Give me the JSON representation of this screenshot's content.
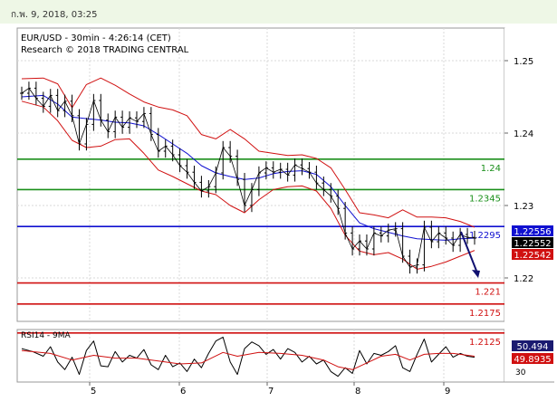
{
  "header": {
    "date_text": "ก.พ. 9, 2018, 03:25"
  },
  "chart_data": {
    "type": "line",
    "title": "EUR/USD - 30min - 4:26:14 (CET)",
    "subtitle": "Research © 2018 TRADING CENTRAL",
    "x_tick_labels": [
      "5",
      "6",
      "7",
      "8",
      "9"
    ],
    "y_tick_labels": [
      "1.25",
      "1.24",
      "1.23",
      "1.22"
    ],
    "ylim": [
      1.214,
      1.2545
    ],
    "grid": true,
    "levels": [
      {
        "label": "1.24",
        "value": 1.2364,
        "color": "#1a8f1a"
      },
      {
        "label": "1.2345",
        "value": 1.2322,
        "color": "#1a8f1a"
      },
      {
        "label": "1.2295",
        "value": 1.2271,
        "color": "#1010d0"
      },
      {
        "label": "1.221",
        "value": 1.2193,
        "color": "#d01010"
      },
      {
        "label": "1.2175",
        "value": 1.2164,
        "color": "#d01010"
      },
      {
        "label": "1.2125",
        "value": 1.2124,
        "color": "#d01010"
      }
    ],
    "price_badges": [
      {
        "label": "1.22556",
        "value": 1.22556,
        "color": "#1010d0"
      },
      {
        "label": "1.22552",
        "value": 1.22552,
        "color": "#000000"
      },
      {
        "label": "1.22542",
        "value": 1.22542,
        "color": "#d01010"
      }
    ],
    "price_series": [
      [
        0,
        1.2455
      ],
      [
        2,
        1.2462
      ],
      [
        4,
        1.2448
      ],
      [
        6,
        1.2437
      ],
      [
        8,
        1.2452
      ],
      [
        10,
        1.2431
      ],
      [
        12,
        1.2444
      ],
      [
        14,
        1.2424
      ],
      [
        16,
        1.2385
      ],
      [
        18,
        1.2412
      ],
      [
        20,
        1.2445
      ],
      [
        22,
        1.2418
      ],
      [
        24,
        1.2402
      ],
      [
        26,
        1.2422
      ],
      [
        28,
        1.2408
      ],
      [
        30,
        1.2421
      ],
      [
        32,
        1.2416
      ],
      [
        34,
        1.2427
      ],
      [
        36,
        1.2398
      ],
      [
        38,
        1.2375
      ],
      [
        40,
        1.2382
      ],
      [
        42,
        1.237
      ],
      [
        44,
        1.2355
      ],
      [
        46,
        1.2346
      ],
      [
        48,
        1.2332
      ],
      [
        50,
        1.232
      ],
      [
        52,
        1.2326
      ],
      [
        54,
        1.2345
      ],
      [
        56,
        1.238
      ],
      [
        58,
        1.2368
      ],
      [
        60,
        1.2336
      ],
      [
        62,
        1.23
      ],
      [
        64,
        1.2322
      ],
      [
        66,
        1.2345
      ],
      [
        68,
        1.2352
      ],
      [
        70,
        1.2346
      ],
      [
        72,
        1.235
      ],
      [
        74,
        1.2342
      ],
      [
        76,
        1.2356
      ],
      [
        78,
        1.2351
      ],
      [
        80,
        1.2346
      ],
      [
        82,
        1.2331
      ],
      [
        84,
        1.2322
      ],
      [
        86,
        1.2313
      ],
      [
        88,
        1.2296
      ],
      [
        90,
        1.2262
      ],
      [
        92,
        1.224
      ],
      [
        94,
        1.2251
      ],
      [
        96,
        1.224
      ],
      [
        98,
        1.2262
      ],
      [
        100,
        1.2258
      ],
      [
        102,
        1.2266
      ],
      [
        104,
        1.2268
      ],
      [
        106,
        1.223
      ],
      [
        108,
        1.2215
      ],
      [
        110,
        1.2218
      ],
      [
        112,
        1.227
      ],
      [
        114,
        1.225
      ],
      [
        116,
        1.2262
      ],
      [
        118,
        1.2255
      ],
      [
        120,
        1.2245
      ],
      [
        122,
        1.226
      ],
      [
        124,
        1.2256
      ],
      [
        126,
        1.2255
      ]
    ],
    "upper_band": [
      [
        0,
        1.2475
      ],
      [
        6,
        1.2476
      ],
      [
        10,
        1.2468
      ],
      [
        14,
        1.2435
      ],
      [
        18,
        1.2467
      ],
      [
        22,
        1.2476
      ],
      [
        26,
        1.2466
      ],
      [
        30,
        1.2454
      ],
      [
        34,
        1.2443
      ],
      [
        38,
        1.2436
      ],
      [
        42,
        1.2432
      ],
      [
        46,
        1.2424
      ],
      [
        50,
        1.2398
      ],
      [
        54,
        1.2392
      ],
      [
        58,
        1.2405
      ],
      [
        62,
        1.2392
      ],
      [
        66,
        1.2375
      ],
      [
        70,
        1.2372
      ],
      [
        74,
        1.2369
      ],
      [
        78,
        1.237
      ],
      [
        82,
        1.2365
      ],
      [
        86,
        1.2352
      ],
      [
        90,
        1.2322
      ],
      [
        94,
        1.229
      ],
      [
        98,
        1.2287
      ],
      [
        102,
        1.2283
      ],
      [
        106,
        1.2294
      ],
      [
        110,
        1.2284
      ],
      [
        114,
        1.2284
      ],
      [
        118,
        1.2283
      ],
      [
        122,
        1.2278
      ],
      [
        126,
        1.227
      ]
    ],
    "lower_band": [
      [
        0,
        1.2444
      ],
      [
        6,
        1.2436
      ],
      [
        10,
        1.2417
      ],
      [
        14,
        1.239
      ],
      [
        18,
        1.238
      ],
      [
        22,
        1.2382
      ],
      [
        26,
        1.2391
      ],
      [
        30,
        1.2392
      ],
      [
        34,
        1.2372
      ],
      [
        38,
        1.2349
      ],
      [
        42,
        1.234
      ],
      [
        46,
        1.233
      ],
      [
        50,
        1.232
      ],
      [
        54,
        1.2315
      ],
      [
        58,
        1.23
      ],
      [
        62,
        1.229
      ],
      [
        66,
        1.2308
      ],
      [
        70,
        1.2322
      ],
      [
        74,
        1.2326
      ],
      [
        78,
        1.2327
      ],
      [
        82,
        1.232
      ],
      [
        86,
        1.2296
      ],
      [
        90,
        1.2259
      ],
      [
        94,
        1.2237
      ],
      [
        98,
        1.2232
      ],
      [
        102,
        1.2235
      ],
      [
        106,
        1.2226
      ],
      [
        110,
        1.2212
      ],
      [
        114,
        1.2216
      ],
      [
        118,
        1.2222
      ],
      [
        122,
        1.223
      ],
      [
        126,
        1.2238
      ]
    ],
    "moving_average": [
      [
        0,
        1.245
      ],
      [
        6,
        1.2452
      ],
      [
        10,
        1.244
      ],
      [
        14,
        1.2422
      ],
      [
        18,
        1.242
      ],
      [
        22,
        1.2418
      ],
      [
        26,
        1.2415
      ],
      [
        30,
        1.2414
      ],
      [
        34,
        1.241
      ],
      [
        38,
        1.2398
      ],
      [
        42,
        1.2385
      ],
      [
        46,
        1.2372
      ],
      [
        50,
        1.2355
      ],
      [
        54,
        1.2345
      ],
      [
        58,
        1.234
      ],
      [
        62,
        1.2336
      ],
      [
        66,
        1.2338
      ],
      [
        70,
        1.2344
      ],
      [
        74,
        1.2347
      ],
      [
        78,
        1.2348
      ],
      [
        82,
        1.2343
      ],
      [
        86,
        1.2326
      ],
      [
        90,
        1.23
      ],
      [
        94,
        1.2276
      ],
      [
        98,
        1.2268
      ],
      [
        102,
        1.2263
      ],
      [
        106,
        1.2258
      ],
      [
        110,
        1.2254
      ],
      [
        114,
        1.2253
      ],
      [
        118,
        1.2252
      ],
      [
        122,
        1.2254
      ],
      [
        126,
        1.2255
      ]
    ],
    "rsi": {
      "label": "RSI14 - 9MA",
      "value_label": "50.494",
      "ma_label": "49.8935",
      "tick_label": "30",
      "ylim": [
        25,
        80
      ],
      "values": [
        [
          0,
          60
        ],
        [
          3,
          57
        ],
        [
          6,
          52
        ],
        [
          8,
          62
        ],
        [
          10,
          46
        ],
        [
          12,
          38
        ],
        [
          14,
          51
        ],
        [
          16,
          33
        ],
        [
          18,
          58
        ],
        [
          20,
          68
        ],
        [
          22,
          42
        ],
        [
          24,
          41
        ],
        [
          26,
          57
        ],
        [
          28,
          46
        ],
        [
          30,
          53
        ],
        [
          32,
          50
        ],
        [
          34,
          59
        ],
        [
          36,
          43
        ],
        [
          38,
          38
        ],
        [
          40,
          53
        ],
        [
          42,
          41
        ],
        [
          44,
          45
        ],
        [
          46,
          36
        ],
        [
          48,
          49
        ],
        [
          50,
          40
        ],
        [
          52,
          55
        ],
        [
          54,
          68
        ],
        [
          56,
          72
        ],
        [
          58,
          46
        ],
        [
          60,
          33
        ],
        [
          62,
          60
        ],
        [
          64,
          67
        ],
        [
          66,
          63
        ],
        [
          68,
          54
        ],
        [
          70,
          59
        ],
        [
          72,
          49
        ],
        [
          74,
          60
        ],
        [
          76,
          56
        ],
        [
          78,
          46
        ],
        [
          80,
          52
        ],
        [
          82,
          44
        ],
        [
          84,
          48
        ],
        [
          86,
          36
        ],
        [
          88,
          31
        ],
        [
          90,
          40
        ],
        [
          92,
          34
        ],
        [
          94,
          58
        ],
        [
          96,
          44
        ],
        [
          98,
          55
        ],
        [
          100,
          53
        ],
        [
          102,
          57
        ],
        [
          104,
          63
        ],
        [
          106,
          40
        ],
        [
          108,
          36
        ],
        [
          110,
          54
        ],
        [
          112,
          70
        ],
        [
          114,
          46
        ],
        [
          116,
          54
        ],
        [
          118,
          62
        ],
        [
          120,
          51
        ],
        [
          122,
          55
        ],
        [
          124,
          52
        ],
        [
          126,
          51
        ]
      ],
      "ma": [
        [
          0,
          58
        ],
        [
          8,
          55
        ],
        [
          14,
          48
        ],
        [
          20,
          53
        ],
        [
          26,
          50
        ],
        [
          32,
          50
        ],
        [
          38,
          47
        ],
        [
          44,
          44
        ],
        [
          50,
          45
        ],
        [
          56,
          56
        ],
        [
          60,
          52
        ],
        [
          66,
          56
        ],
        [
          72,
          55
        ],
        [
          78,
          53
        ],
        [
          84,
          48
        ],
        [
          88,
          41
        ],
        [
          92,
          38
        ],
        [
          96,
          45
        ],
        [
          100,
          52
        ],
        [
          104,
          54
        ],
        [
          108,
          48
        ],
        [
          112,
          54
        ],
        [
          116,
          55
        ],
        [
          120,
          55
        ],
        [
          126,
          52
        ]
      ]
    }
  }
}
